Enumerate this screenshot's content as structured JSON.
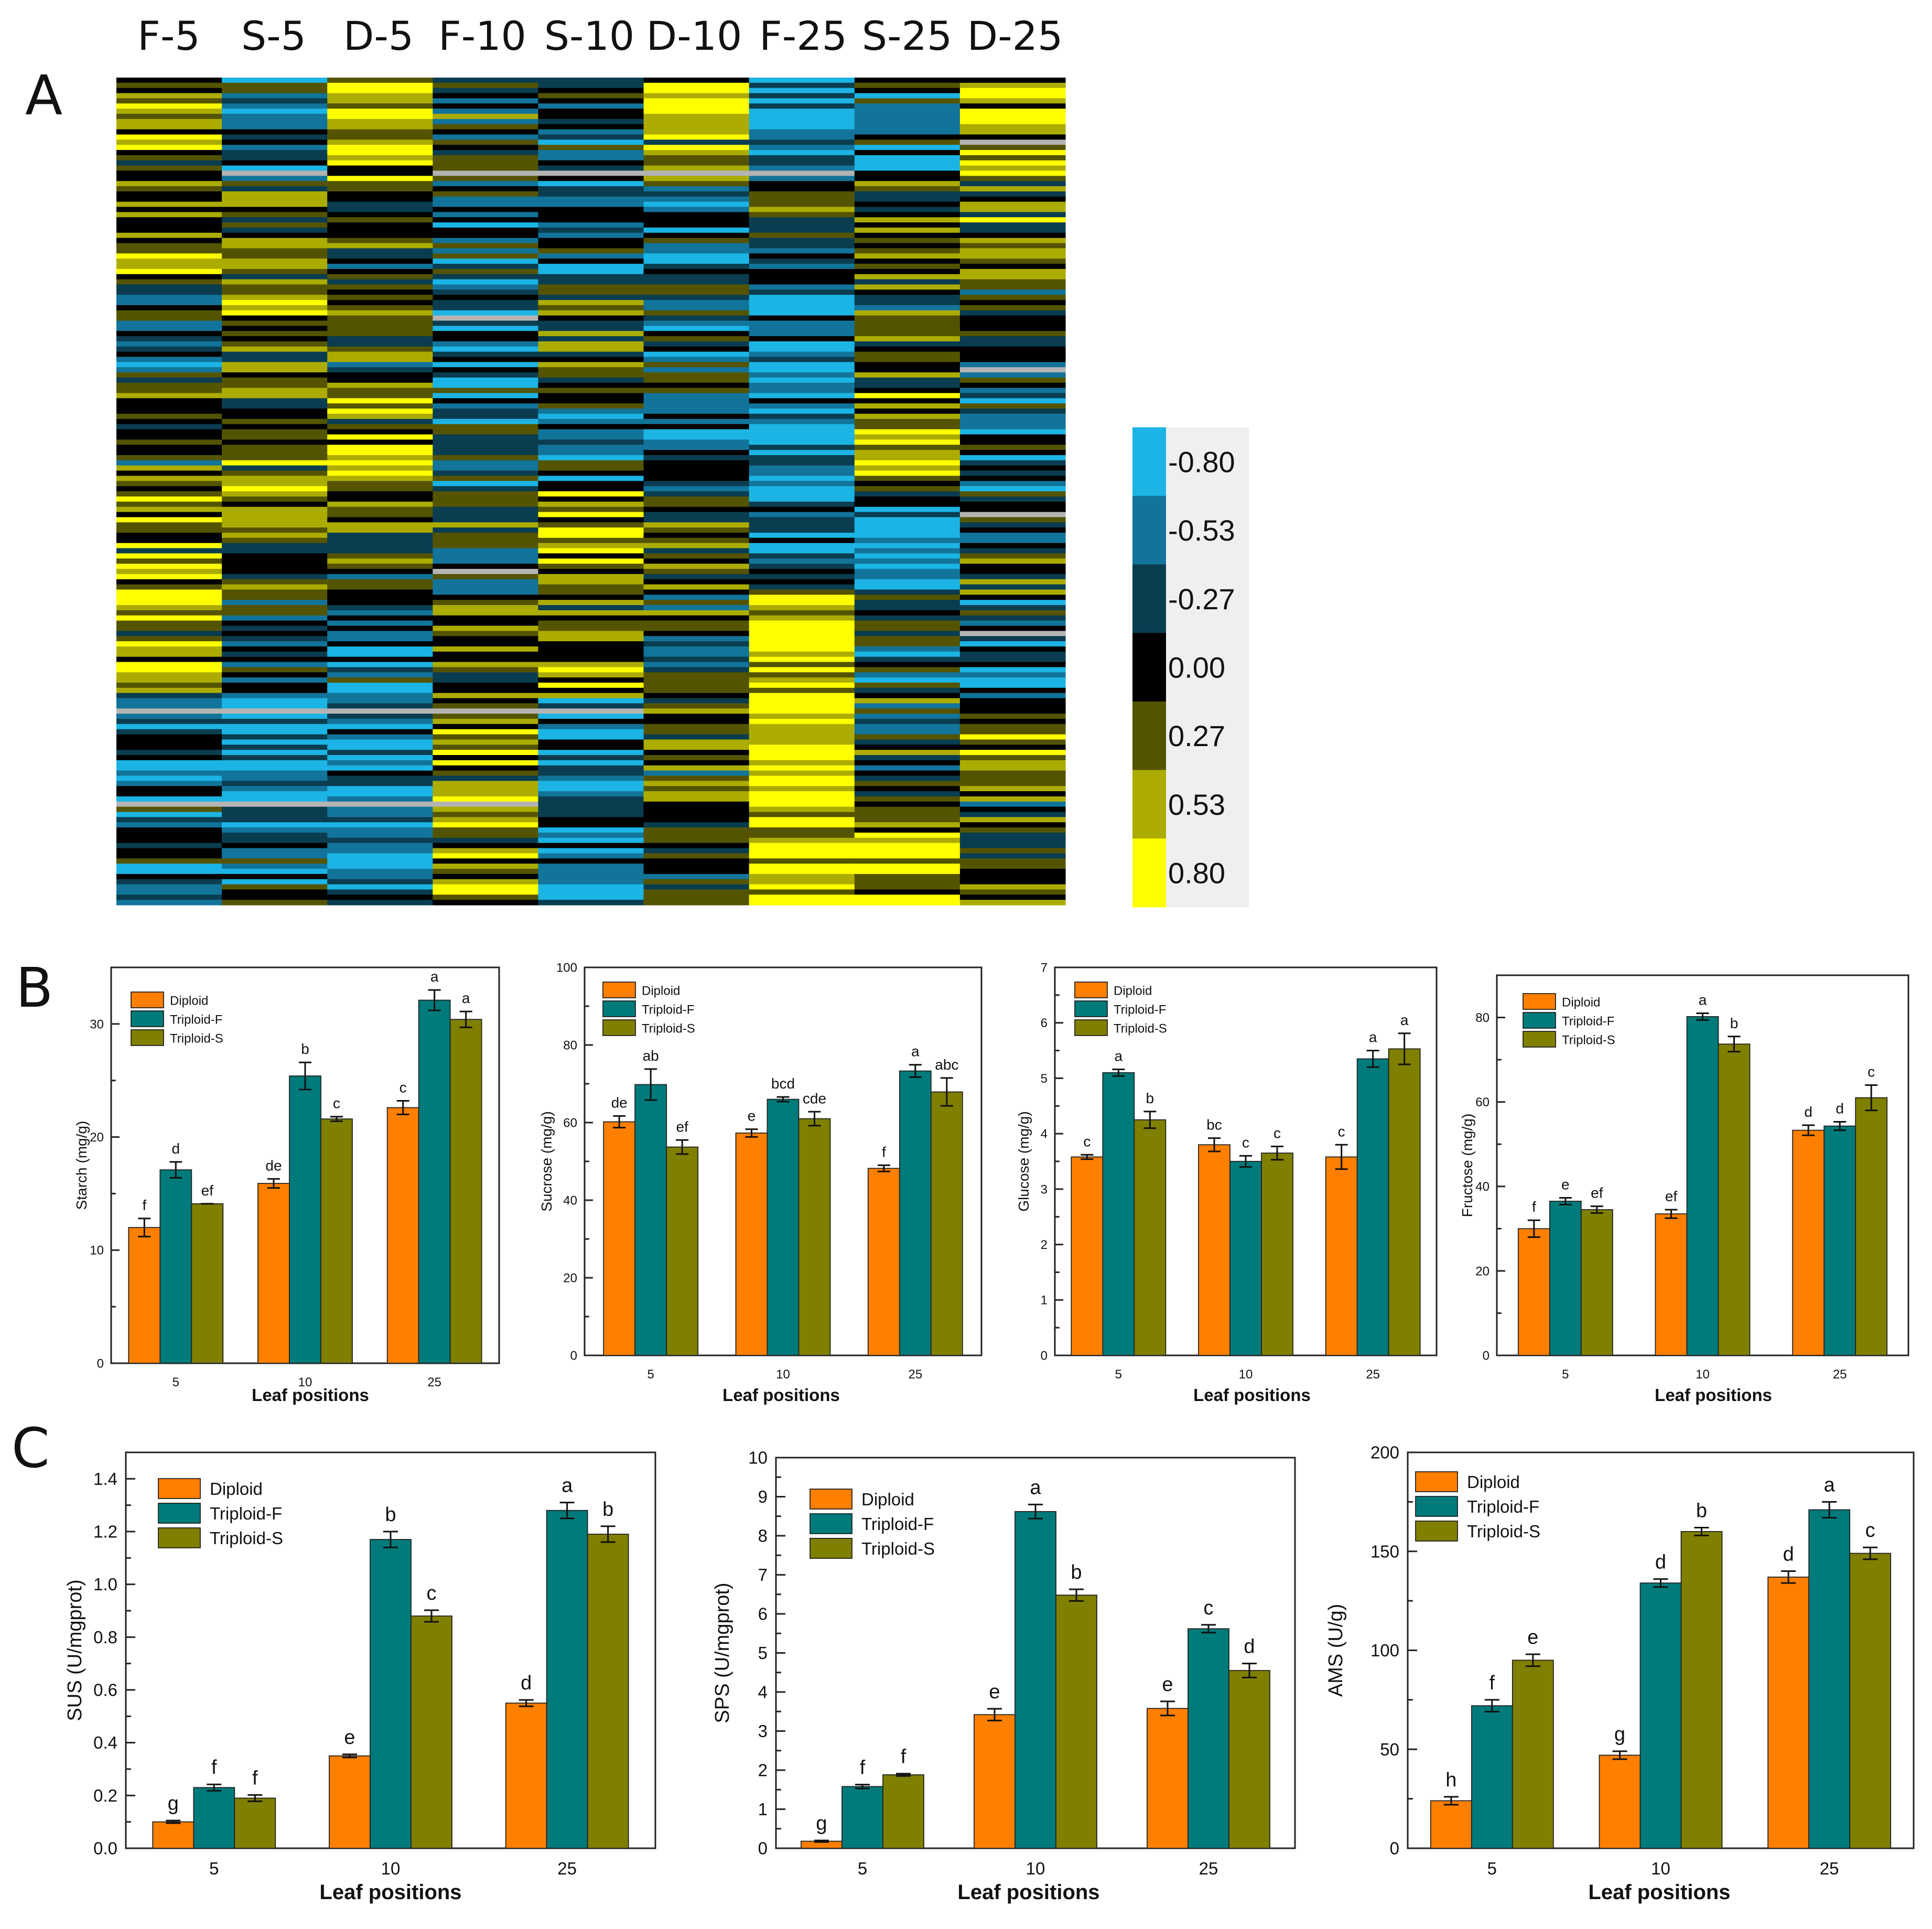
{
  "figure": {
    "panel_labels": [
      "A",
      "B",
      "C"
    ],
    "colors": {
      "Diploid": "#ff7f00",
      "Triploid-F": "#007a7a",
      "Triploid-S": "#7f7f00",
      "missing": "#b4b4b4"
    }
  },
  "chart_data": [
    {
      "id": "heatmap",
      "type": "heatmap",
      "columns": [
        "F-5",
        "S-5",
        "D-5",
        "F-10",
        "S-10",
        "D-10",
        "F-25",
        "S-25",
        "D-25"
      ],
      "colorbar": {
        "labels": [
          "-0.80",
          "-0.53",
          "-0.27",
          "0.00",
          "0.27",
          "0.53",
          "0.80"
        ],
        "colors": [
          "#1cb4e4",
          "#12749a",
          "#0a3d50",
          "#000000",
          "#545400",
          "#acac00",
          "#ffff00"
        ]
      },
      "row_count": 160,
      "note_values": "per-row scaled values between -0.80 and 0.80"
    },
    {
      "id": "starch",
      "type": "bar",
      "panel": "B",
      "ylabel": "Starch (mg/g)",
      "xlabel": "Leaf positions",
      "categories": [
        "5",
        "10",
        "25"
      ],
      "ylim": [
        0,
        35
      ],
      "yticks": [
        0,
        10,
        20,
        30
      ],
      "series": [
        {
          "name": "Diploid",
          "values": [
            12.0,
            15.9,
            22.6
          ],
          "errors": [
            0.8,
            0.4,
            0.6
          ],
          "letters": [
            "f",
            "de",
            "c"
          ]
        },
        {
          "name": "Triploid-F",
          "values": [
            17.1,
            25.4,
            32.1
          ],
          "errors": [
            0.7,
            1.2,
            0.9
          ],
          "letters": [
            "d",
            "b",
            "a"
          ]
        },
        {
          "name": "Triploid-S",
          "values": [
            14.1,
            21.6,
            30.4
          ],
          "errors": [
            0.0,
            0.2,
            0.7
          ],
          "letters": [
            "ef",
            "c",
            "a"
          ]
        }
      ]
    },
    {
      "id": "sucrose",
      "type": "bar",
      "panel": "B",
      "ylabel": "Sucrose (mg/g)",
      "xlabel": "Leaf positions",
      "categories": [
        "5",
        "10",
        "25"
      ],
      "ylim": [
        0,
        100
      ],
      "yticks": [
        0,
        20,
        40,
        60,
        80,
        100
      ],
      "series": [
        {
          "name": "Diploid",
          "values": [
            60.2,
            57.3,
            48.2
          ],
          "errors": [
            1.5,
            1.0,
            0.8
          ],
          "letters": [
            "de",
            "e",
            "f"
          ]
        },
        {
          "name": "Triploid-F",
          "values": [
            69.8,
            66.0,
            73.3
          ],
          "errors": [
            4.0,
            0.6,
            1.6
          ],
          "letters": [
            "ab",
            "bcd",
            "a"
          ]
        },
        {
          "name": "Triploid-S",
          "values": [
            53.7,
            61.0,
            67.9
          ],
          "errors": [
            1.8,
            1.8,
            3.6
          ],
          "letters": [
            "ef",
            "cde",
            "abc"
          ]
        }
      ]
    },
    {
      "id": "glucose",
      "type": "bar",
      "panel": "B",
      "ylabel": "Glucose (mg/g)",
      "xlabel": "Leaf positions",
      "categories": [
        "5",
        "10",
        "25"
      ],
      "ylim": [
        0,
        7
      ],
      "yticks": [
        0,
        1,
        2,
        3,
        4,
        5,
        6,
        7
      ],
      "series": [
        {
          "name": "Diploid",
          "values": [
            3.58,
            3.8,
            3.58
          ],
          "errors": [
            0.04,
            0.12,
            0.22
          ],
          "letters": [
            "c",
            "bc",
            "c"
          ]
        },
        {
          "name": "Triploid-F",
          "values": [
            5.1,
            3.5,
            5.35
          ],
          "errors": [
            0.06,
            0.1,
            0.15
          ],
          "letters": [
            "a",
            "c",
            "a"
          ]
        },
        {
          "name": "Triploid-S",
          "values": [
            4.25,
            3.65,
            5.53
          ],
          "errors": [
            0.15,
            0.12,
            0.28
          ],
          "letters": [
            "b",
            "c",
            "a"
          ]
        }
      ]
    },
    {
      "id": "fructose",
      "type": "bar",
      "panel": "B",
      "ylabel": "Fructose (mg/g)",
      "xlabel": "Leaf positions",
      "categories": [
        "5",
        "10",
        "25"
      ],
      "ylim": [
        0,
        90
      ],
      "yticks": [
        0,
        20,
        40,
        60,
        80
      ],
      "series": [
        {
          "name": "Diploid",
          "values": [
            30.0,
            33.5,
            53.3
          ],
          "errors": [
            2.0,
            1.0,
            1.2
          ],
          "letters": [
            "f",
            "ef",
            "d"
          ]
        },
        {
          "name": "Triploid-F",
          "values": [
            36.5,
            80.2,
            54.3
          ],
          "errors": [
            0.8,
            0.8,
            1.0
          ],
          "letters": [
            "e",
            "a",
            "d"
          ]
        },
        {
          "name": "Triploid-S",
          "values": [
            34.5,
            73.7,
            61.0
          ],
          "errors": [
            0.8,
            1.8,
            3.0
          ],
          "letters": [
            "ef",
            "b",
            "c"
          ]
        }
      ]
    },
    {
      "id": "sus",
      "type": "bar",
      "panel": "C",
      "ylabel": "SUS (U/mgprot)",
      "xlabel": "Leaf positions",
      "categories": [
        "5",
        "10",
        "25"
      ],
      "ylim": [
        0,
        1.5
      ],
      "yticks": [
        0.0,
        0.2,
        0.4,
        0.6,
        0.8,
        1.0,
        1.2,
        1.4
      ],
      "tick_labels": [
        "0.0",
        "0.2",
        "0.4",
        "0.6",
        "0.8",
        "1.0",
        "1.2",
        "1.4"
      ],
      "series": [
        {
          "name": "Diploid",
          "values": [
            0.1,
            0.35,
            0.55
          ],
          "errors": [
            0.005,
            0.006,
            0.012
          ],
          "letters": [
            "g",
            "e",
            "d"
          ]
        },
        {
          "name": "Triploid-F",
          "values": [
            0.23,
            1.17,
            1.28
          ],
          "errors": [
            0.012,
            0.03,
            0.03
          ],
          "letters": [
            "f",
            "b",
            "a"
          ]
        },
        {
          "name": "Triploid-S",
          "values": [
            0.19,
            0.88,
            1.19
          ],
          "errors": [
            0.012,
            0.022,
            0.03
          ],
          "letters": [
            "f",
            "c",
            "b"
          ]
        }
      ]
    },
    {
      "id": "sps",
      "type": "bar",
      "panel": "C",
      "ylabel": "SPS (U/mgprot)",
      "xlabel": "Leaf positions",
      "categories": [
        "5",
        "10",
        "25"
      ],
      "ylim": [
        0,
        10
      ],
      "yticks": [
        0,
        1,
        2,
        3,
        4,
        5,
        6,
        7,
        8,
        9,
        10
      ],
      "series": [
        {
          "name": "Diploid",
          "values": [
            0.18,
            3.42,
            3.58
          ],
          "errors": [
            0.02,
            0.15,
            0.18
          ],
          "letters": [
            "g",
            "e",
            "e"
          ]
        },
        {
          "name": "Triploid-F",
          "values": [
            1.58,
            8.62,
            5.62
          ],
          "errors": [
            0.05,
            0.18,
            0.1
          ],
          "letters": [
            "f",
            "a",
            "c"
          ]
        },
        {
          "name": "Triploid-S",
          "values": [
            1.88,
            6.48,
            4.55
          ],
          "errors": [
            0.03,
            0.15,
            0.18
          ],
          "letters": [
            "f",
            "b",
            "d"
          ]
        }
      ]
    },
    {
      "id": "ams",
      "type": "bar",
      "panel": "C",
      "ylabel": "AMS (U/g)",
      "xlabel": "Leaf positions",
      "categories": [
        "5",
        "10",
        "25"
      ],
      "ylim": [
        0,
        200
      ],
      "yticks": [
        0,
        50,
        100,
        150,
        200
      ],
      "series": [
        {
          "name": "Diploid",
          "values": [
            24,
            47,
            137
          ],
          "errors": [
            2,
            2,
            3
          ],
          "letters": [
            "h",
            "g",
            "d"
          ]
        },
        {
          "name": "Triploid-F",
          "values": [
            72,
            134,
            171
          ],
          "errors": [
            3,
            2,
            4
          ],
          "letters": [
            "f",
            "d",
            "a"
          ]
        },
        {
          "name": "Triploid-S",
          "values": [
            95,
            160,
            149
          ],
          "errors": [
            3,
            2,
            3
          ],
          "letters": [
            "e",
            "b",
            "c"
          ]
        }
      ]
    }
  ]
}
